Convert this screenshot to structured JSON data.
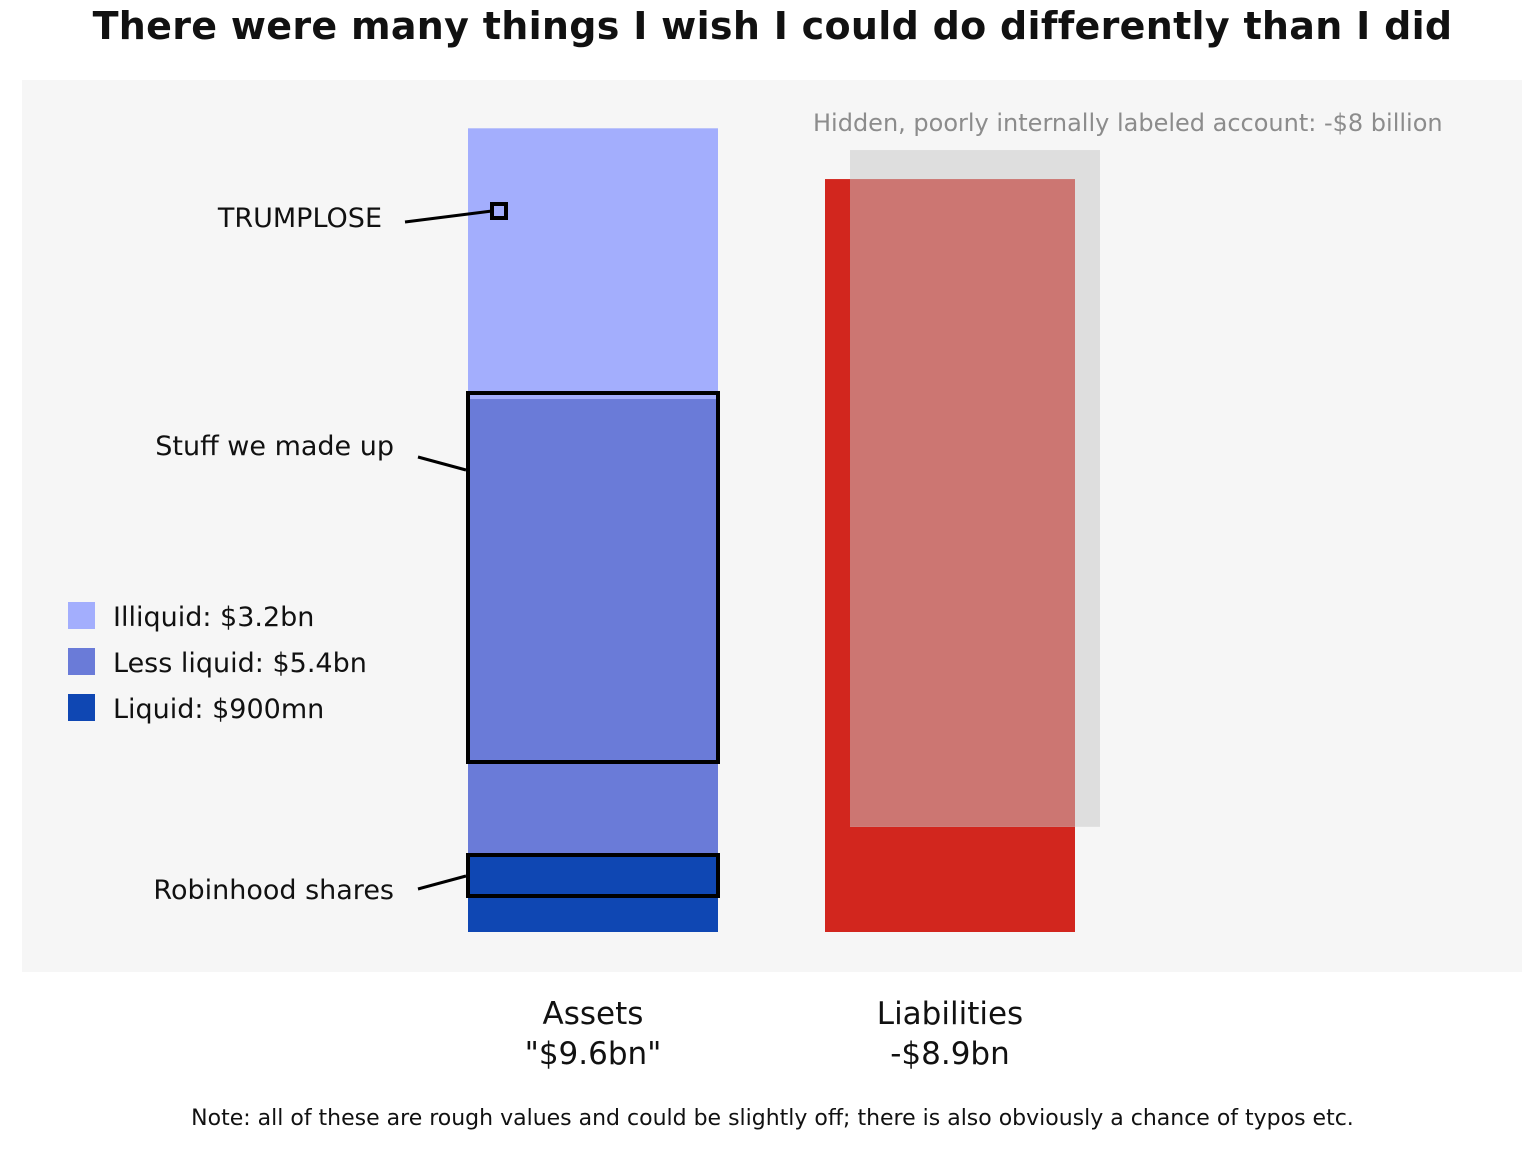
{
  "chart_data": {
    "type": "bar",
    "title": "There were many things I wish I could do differently than I did",
    "bars": [
      {
        "name": "Assets",
        "label_line1": "Assets",
        "label_line2": "\"$9.6bn\"",
        "total": 9.6,
        "segments": [
          {
            "name": "Liquid",
            "value": 0.9,
            "color": "#0f47b3"
          },
          {
            "name": "Less liquid",
            "value": 5.4,
            "color": "#6a7bd8"
          },
          {
            "name": "Illiquid",
            "value": 3.2,
            "color": "#a3aefd"
          }
        ]
      },
      {
        "name": "Liabilities",
        "label_line1": "Liabilities",
        "label_line2": "-$8.9bn",
        "total": 8.9,
        "color": "#d2261e"
      }
    ],
    "overlay": {
      "label": "Hidden, poorly internally labeled account: -$8 billion",
      "value": 8,
      "color": "#dedede",
      "blend_color": "#cc7672"
    },
    "annotations": [
      {
        "label": "TRUMPLOSE",
        "segment": "Illiquid"
      },
      {
        "label": "Stuff we made up",
        "segment": "Less liquid"
      },
      {
        "label": "Robinhood shares",
        "segment": "Liquid"
      }
    ],
    "legend": {
      "position": "left",
      "items": [
        {
          "label": "Illiquid: $3.2bn",
          "color": "#a3aefd"
        },
        {
          "label": "Less liquid: $5.4bn",
          "color": "#6a7bd8"
        },
        {
          "label": "Liquid: $900mn",
          "color": "#0f47b3"
        }
      ]
    },
    "grid": false
  },
  "note": "Note: all of these are rough values and could be slightly off; there is also obviously a chance of typos etc."
}
